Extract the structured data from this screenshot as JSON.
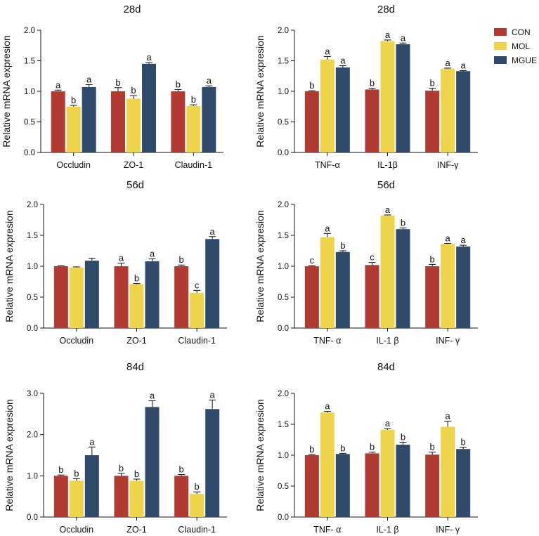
{
  "colors": {
    "CON": "#b13a32",
    "MOL": "#edd44a",
    "MGUE": "#2f4a6b",
    "axis": "#111111"
  },
  "legend": {
    "items": [
      "CON",
      "MOL",
      "MGUE"
    ],
    "placement": "top-right"
  },
  "chart_data": [
    {
      "type": "bar",
      "title": "28d",
      "ylabel": "Relative mRNA expresion",
      "ylim": [
        0,
        2.0
      ],
      "yticks": [
        "0.0",
        "0.5",
        "1.0",
        "1.5",
        "2.0"
      ],
      "categories": [
        "Occludin",
        "ZO-1",
        "Claudin-1"
      ],
      "series": [
        {
          "name": "CON",
          "values": [
            1.0,
            1.0,
            1.0
          ],
          "errors": [
            0.02,
            0.06,
            0.03
          ],
          "letters": [
            "a",
            "b",
            "b"
          ]
        },
        {
          "name": "MOL",
          "values": [
            0.75,
            0.88,
            0.76
          ],
          "errors": [
            0.02,
            0.05,
            0.02
          ],
          "letters": [
            "b",
            "b",
            "b"
          ]
        },
        {
          "name": "MGUE",
          "values": [
            1.07,
            1.45,
            1.07
          ],
          "errors": [
            0.04,
            0.02,
            0.02
          ],
          "letters": [
            "a",
            "a",
            "a"
          ]
        }
      ]
    },
    {
      "type": "bar",
      "title": "28d",
      "ylabel": "Relative mRNA expresion",
      "ylim": [
        0,
        2.0
      ],
      "yticks": [
        "0.0",
        "0.5",
        "1.0",
        "1.5",
        "2.0"
      ],
      "categories": [
        "TNF-α",
        "IL-1β",
        "INF-γ"
      ],
      "series": [
        {
          "name": "CON",
          "values": [
            1.0,
            1.03,
            1.01
          ],
          "errors": [
            0.01,
            0.02,
            0.04
          ],
          "letters": [
            "b",
            "b",
            "b"
          ]
        },
        {
          "name": "MOL",
          "values": [
            1.52,
            1.82,
            1.37
          ],
          "errors": [
            0.05,
            0.02,
            0.01
          ],
          "letters": [
            "a",
            "a",
            "a"
          ]
        },
        {
          "name": "MGUE",
          "values": [
            1.39,
            1.77,
            1.33
          ],
          "errors": [
            0.03,
            0.02,
            0.01
          ],
          "letters": [
            "a",
            "a",
            "a"
          ]
        }
      ]
    },
    {
      "type": "bar",
      "title": "56d",
      "ylabel": "Relative mRNA expresion",
      "ylim": [
        0,
        2.0
      ],
      "yticks": [
        "0.0",
        "0.5",
        "1.0",
        "1.5",
        "2.0"
      ],
      "categories": [
        "Occludin",
        "ZO-1",
        "Claudin-1"
      ],
      "series": [
        {
          "name": "CON",
          "values": [
            1.0,
            1.0,
            1.0
          ],
          "errors": [
            0.01,
            0.05,
            0.02
          ],
          "letters": [
            "",
            "a",
            "b"
          ]
        },
        {
          "name": "MOL",
          "values": [
            0.98,
            0.71,
            0.57
          ],
          "errors": [
            0.01,
            0.01,
            0.04
          ],
          "letters": [
            "",
            "b",
            "c"
          ]
        },
        {
          "name": "MGUE",
          "values": [
            1.09,
            1.08,
            1.44
          ],
          "errors": [
            0.04,
            0.04,
            0.04
          ],
          "letters": [
            "",
            "a",
            "a"
          ]
        }
      ]
    },
    {
      "type": "bar",
      "title": "56d",
      "ylabel": "Relative mRNA expresion",
      "ylim": [
        0,
        2.0
      ],
      "yticks": [
        "0.0",
        "0.5",
        "1.0",
        "1.5",
        "2.0"
      ],
      "categories": [
        "TNF- α",
        "IL-1 β",
        "INF- γ"
      ],
      "series": [
        {
          "name": "CON",
          "values": [
            1.0,
            1.02,
            1.0
          ],
          "errors": [
            0.01,
            0.04,
            0.03
          ],
          "letters": [
            "c",
            "c",
            "b"
          ]
        },
        {
          "name": "MOL",
          "values": [
            1.47,
            1.82,
            1.36
          ],
          "errors": [
            0.06,
            0.01,
            0.01
          ],
          "letters": [
            "a",
            "a",
            "a"
          ]
        },
        {
          "name": "MGUE",
          "values": [
            1.23,
            1.6,
            1.32
          ],
          "errors": [
            0.02,
            0.02,
            0.02
          ],
          "letters": [
            "b",
            "b",
            "a"
          ]
        }
      ]
    },
    {
      "type": "bar",
      "title": "84d",
      "ylabel": "Relative mRNA expresion",
      "ylim": [
        0,
        3.0
      ],
      "yticks": [
        "0.0",
        "1.0",
        "2.0",
        "3.0"
      ],
      "categories": [
        "Occludin",
        "ZO-1",
        "Claudin-1"
      ],
      "series": [
        {
          "name": "CON",
          "values": [
            1.0,
            1.0,
            1.0
          ],
          "errors": [
            0.02,
            0.06,
            0.03
          ],
          "letters": [
            "b",
            "b",
            "b"
          ]
        },
        {
          "name": "MOL",
          "values": [
            0.88,
            0.88,
            0.56
          ],
          "errors": [
            0.05,
            0.04,
            0.05
          ],
          "letters": [
            "b",
            "b",
            "b"
          ]
        },
        {
          "name": "MGUE",
          "values": [
            1.5,
            2.67,
            2.62
          ],
          "errors": [
            0.2,
            0.15,
            0.22
          ],
          "letters": [
            "a",
            "a",
            "a"
          ]
        }
      ]
    },
    {
      "type": "bar",
      "title": "84d",
      "ylabel": "Relative mRNA expresion",
      "ylim": [
        0,
        2.0
      ],
      "yticks": [
        "0.0",
        "0.5",
        "1.0",
        "1.5",
        "2.0"
      ],
      "categories": [
        "TNF- α",
        "IL-1 β",
        "INF- γ"
      ],
      "series": [
        {
          "name": "CON",
          "values": [
            1.0,
            1.03,
            1.01
          ],
          "errors": [
            0.01,
            0.02,
            0.04
          ],
          "letters": [
            "b",
            "b",
            "b"
          ]
        },
        {
          "name": "MOL",
          "values": [
            1.69,
            1.41,
            1.46
          ],
          "errors": [
            0.02,
            0.02,
            0.09
          ],
          "letters": [
            "a",
            "a",
            "a"
          ]
        },
        {
          "name": "MGUE",
          "values": [
            1.02,
            1.17,
            1.1
          ],
          "errors": [
            0.01,
            0.04,
            0.03
          ],
          "letters": [
            "b",
            "b",
            "b"
          ]
        }
      ]
    }
  ]
}
